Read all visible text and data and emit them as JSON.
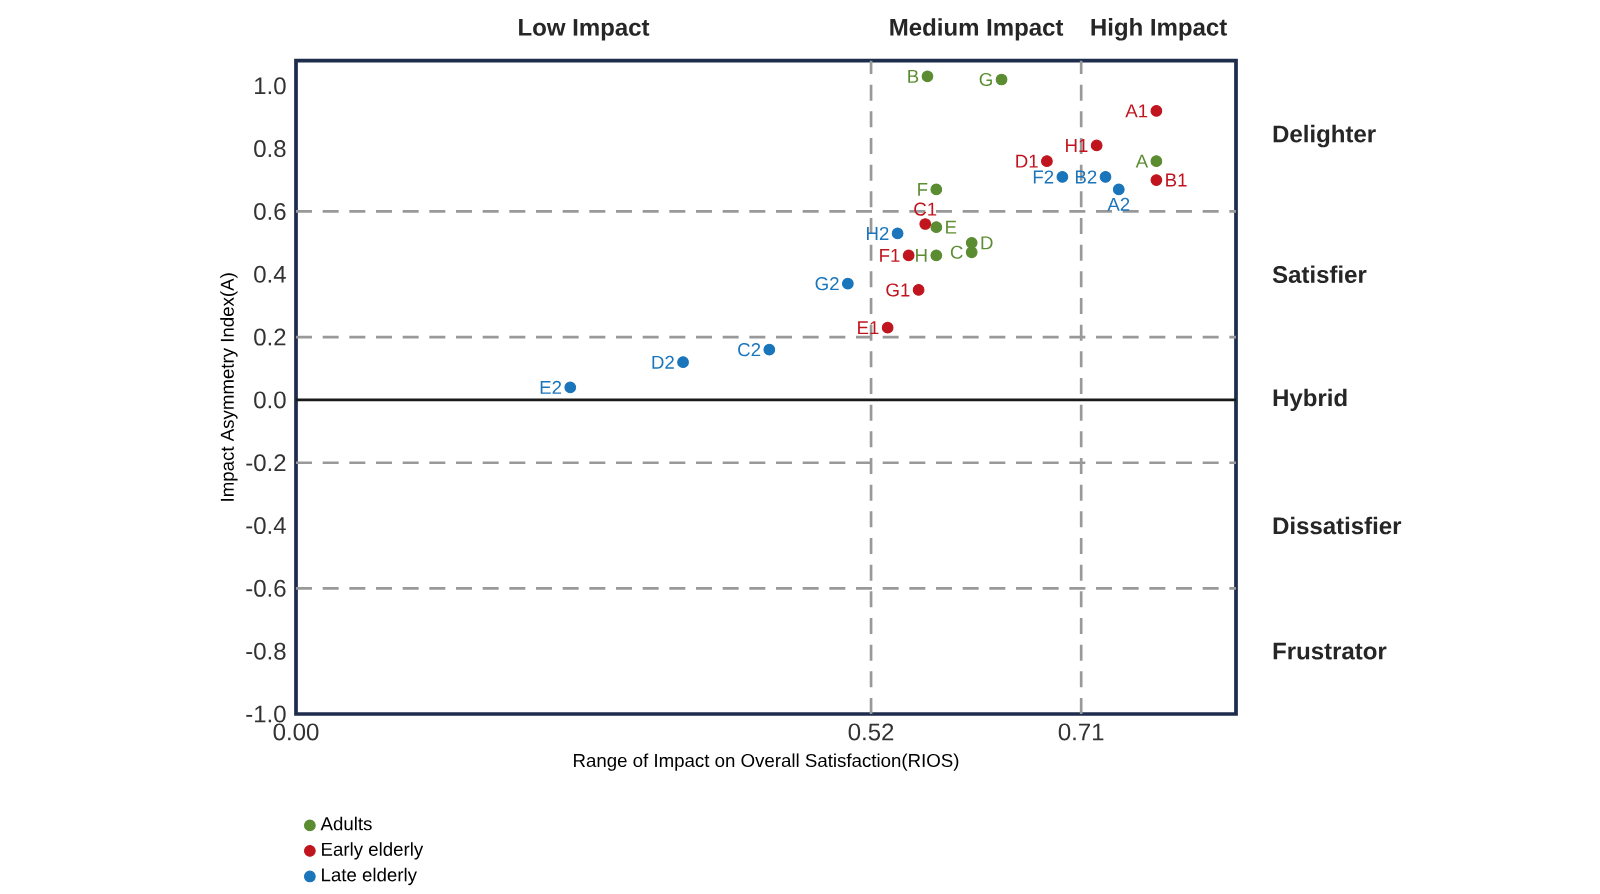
{
  "chart_data": {
    "type": "scatter",
    "xlabel": "Range of Impact on Overall Satisfaction(RIOS)",
    "ylabel": "Impact Asymmetry Index(A)",
    "xlim": [
      0,
      0.85
    ],
    "ylim": [
      -1.0,
      1.08
    ],
    "xticks": [
      {
        "value": 0,
        "label": "0.00"
      },
      {
        "value": 0.52,
        "label": "0.52"
      },
      {
        "value": 0.71,
        "label": "0.71"
      }
    ],
    "yticks": [
      {
        "value": -1.0,
        "label": "-1.0"
      },
      {
        "value": -0.8,
        "label": "-0.8"
      },
      {
        "value": -0.6,
        "label": "-0.6"
      },
      {
        "value": -0.4,
        "label": "-0.4"
      },
      {
        "value": -0.2,
        "label": "-0.2"
      },
      {
        "value": 0.0,
        "label": "0.0"
      },
      {
        "value": 0.2,
        "label": "0.2"
      },
      {
        "value": 0.4,
        "label": "0.4"
      },
      {
        "value": 0.6,
        "label": "0.6"
      },
      {
        "value": 0.8,
        "label": "0.8"
      },
      {
        "value": 1.0,
        "label": "1.0"
      }
    ],
    "legend": "bottom left",
    "grid": false,
    "series": [
      {
        "name": "Adults",
        "color": "#5b8c32",
        "x": [
          0.778,
          0.571,
          0.611,
          0.611,
          0.579,
          0.579,
          0.638,
          0.579
        ],
        "values": [
          0.76,
          1.03,
          0.47,
          0.5,
          0.55,
          0.67,
          1.02,
          0.46
        ]
      },
      {
        "name": "Early elderly",
        "color": "#c0151e",
        "x": [
          0.778,
          0.778,
          0.569,
          0.679,
          0.535,
          0.554,
          0.563,
          0.724
        ],
        "values": [
          0.92,
          0.7,
          0.56,
          0.76,
          0.23,
          0.46,
          0.35,
          0.81
        ]
      },
      {
        "name": "Late elderly",
        "color": "#1a75bb",
        "x": [
          0.744,
          0.732,
          0.428,
          0.35,
          0.248,
          0.693,
          0.499,
          0.544
        ],
        "values": [
          0.67,
          0.71,
          0.16,
          0.12,
          0.04,
          0.71,
          0.37,
          0.53
        ]
      }
    ],
    "ref_lines": [
      {
        "axis": "y",
        "value": 0.6,
        "color": "#999999",
        "line_style": "dashed"
      },
      {
        "axis": "y",
        "value": 0.2,
        "color": "#999999",
        "line_style": "dashed"
      },
      {
        "axis": "y",
        "value": 0.0,
        "color": "#1a1a1a",
        "line_style": "solid"
      },
      {
        "axis": "y",
        "value": -0.2,
        "color": "#999999",
        "line_style": "dashed"
      },
      {
        "axis": "y",
        "value": -0.6,
        "color": "#999999",
        "line_style": "dashed"
      },
      {
        "axis": "x",
        "value": 0.52,
        "color": "#999999",
        "line_style": "dashed"
      },
      {
        "axis": "x",
        "value": 0.71,
        "color": "#999999",
        "line_style": "dashed"
      }
    ],
    "annotations": [
      {
        "text": "A",
        "x": 0.778,
        "y": 0.76
      },
      {
        "text": "B",
        "x": 0.571,
        "y": 1.03
      },
      {
        "text": "C",
        "x": 0.611,
        "y": 0.47
      },
      {
        "text": "D",
        "x": 0.611,
        "y": 0.5
      },
      {
        "text": "E",
        "x": 0.579,
        "y": 0.55
      },
      {
        "text": "F",
        "x": 0.579,
        "y": 0.67
      },
      {
        "text": "G",
        "x": 0.638,
        "y": 1.02
      },
      {
        "text": "H",
        "x": 0.579,
        "y": 0.46
      },
      {
        "text": "A1",
        "x": 0.778,
        "y": 0.92
      },
      {
        "text": "B1",
        "x": 0.778,
        "y": 0.7
      },
      {
        "text": "C1",
        "x": 0.569,
        "y": 0.56
      },
      {
        "text": "D1",
        "x": 0.679,
        "y": 0.76
      },
      {
        "text": "E1",
        "x": 0.535,
        "y": 0.23
      },
      {
        "text": "F1",
        "x": 0.554,
        "y": 0.46
      },
      {
        "text": "G1",
        "x": 0.563,
        "y": 0.35
      },
      {
        "text": "H1",
        "x": 0.724,
        "y": 0.81
      },
      {
        "text": "A2",
        "x": 0.744,
        "y": 0.67
      },
      {
        "text": "B2",
        "x": 0.732,
        "y": 0.71
      },
      {
        "text": "C2",
        "x": 0.428,
        "y": 0.16
      },
      {
        "text": "D2",
        "x": 0.35,
        "y": 0.12
      },
      {
        "text": "E2",
        "x": 0.248,
        "y": 0.04
      },
      {
        "text": "F2",
        "x": 0.693,
        "y": 0.71
      },
      {
        "text": "G2",
        "x": 0.499,
        "y": 0.37
      },
      {
        "text": "H2",
        "x": 0.544,
        "y": 0.53
      },
      "Low Impact",
      "Medium Impact",
      "High Impact",
      "Delighter",
      "Satisfier",
      "Hybrid",
      "Dissatisfier",
      "Frustrator"
    ]
  }
}
